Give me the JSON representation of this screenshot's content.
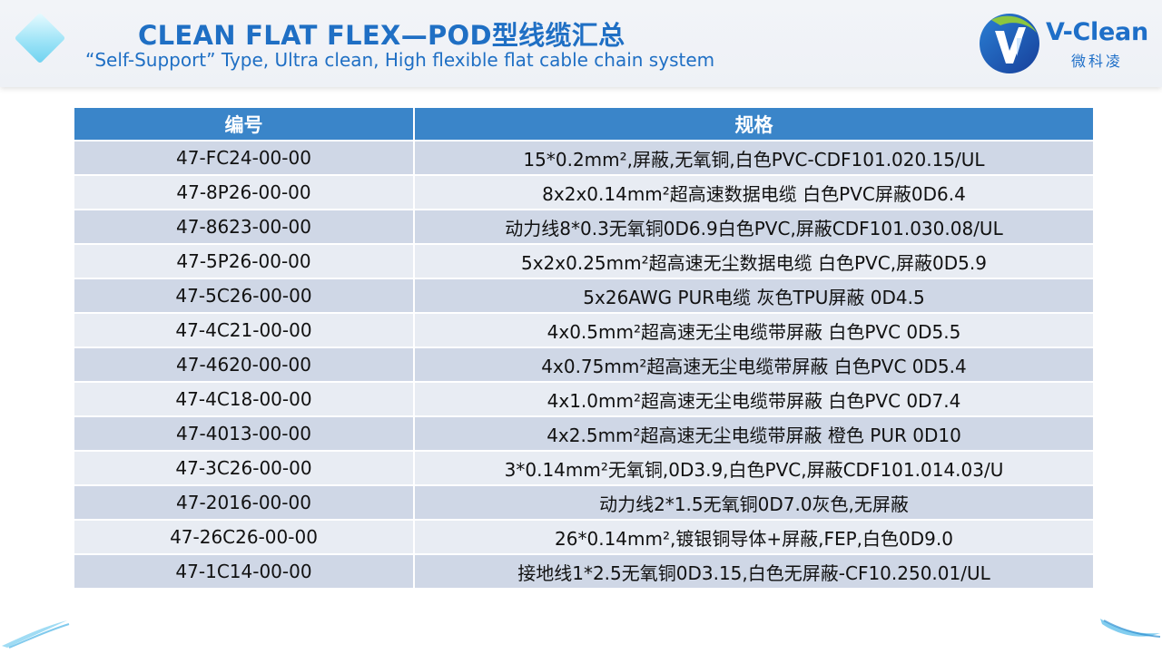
{
  "header": {
    "title": "CLEAN FLAT FLEX—POD型线缆汇总",
    "subtitle": "“Self-Support”  Type, Ultra clean, High flexible flat cable chain system"
  },
  "logo": {
    "brand": "V-Clean",
    "chinese": "微科凌"
  },
  "table": {
    "headers": [
      "编号",
      "规格"
    ],
    "rows": [
      {
        "code": "47-FC24-00-00",
        "spec": "15*0.2mm²,屏蔽,无氧铜,白色PVC-CDF101.020.15/UL"
      },
      {
        "code": "47-8P26-00-00",
        "spec": "8x2x0.14mm²超高速数据电缆 白色PVC屏蔽0D6.4"
      },
      {
        "code": "47-8623-00-00",
        "spec": "动力线8*0.3无氧铜0D6.9白色PVC,屏蔽CDF101.030.08/UL"
      },
      {
        "code": "47-5P26-00-00",
        "spec": "5x2x0.25mm²超高速无尘数据电缆 白色PVC,屏蔽0D5.9"
      },
      {
        "code": "47-5C26-00-00",
        "spec": "5x26AWG PUR电缆 灰色TPU屏蔽 0D4.5"
      },
      {
        "code": "47-4C21-00-00",
        "spec": "4x0.5mm²超高速无尘电缆带屏蔽 白色PVC 0D5.5"
      },
      {
        "code": "47-4620-00-00",
        "spec": "4x0.75mm²超高速无尘电缆带屏蔽 白色PVC 0D5.4"
      },
      {
        "code": "47-4C18-00-00",
        "spec": "4x1.0mm²超高速无尘电缆带屏蔽 白色PVC 0D7.4"
      },
      {
        "code": "47-4013-00-00",
        "spec": "4x2.5mm²超高速无尘电缆带屏蔽 橙色 PUR 0D10"
      },
      {
        "code": "47-3C26-00-00",
        "spec": "3*0.14mm²无氧铜,0D3.9,白色PVC,屏蔽CDF101.014.03/U"
      },
      {
        "code": "47-2016-00-00",
        "spec": "动力线2*1.5无氧铜0D7.0灰色,无屏蔽"
      },
      {
        "code": "47-26C26-00-00",
        "spec": "26*0.14mm²,镀银铜导体+屏蔽,FEP,白色0D9.0"
      },
      {
        "code": "47-1C14-00-00",
        "spec": "接地线1*2.5无氧铜0D3.15,白色无屏蔽-CF10.250.01/UL"
      }
    ]
  },
  "colors": {
    "title": "#1f6fc4",
    "header_cell": "#3a85c9",
    "row_dark": "#cfd7e6",
    "row_light": "#e8ecf3"
  }
}
